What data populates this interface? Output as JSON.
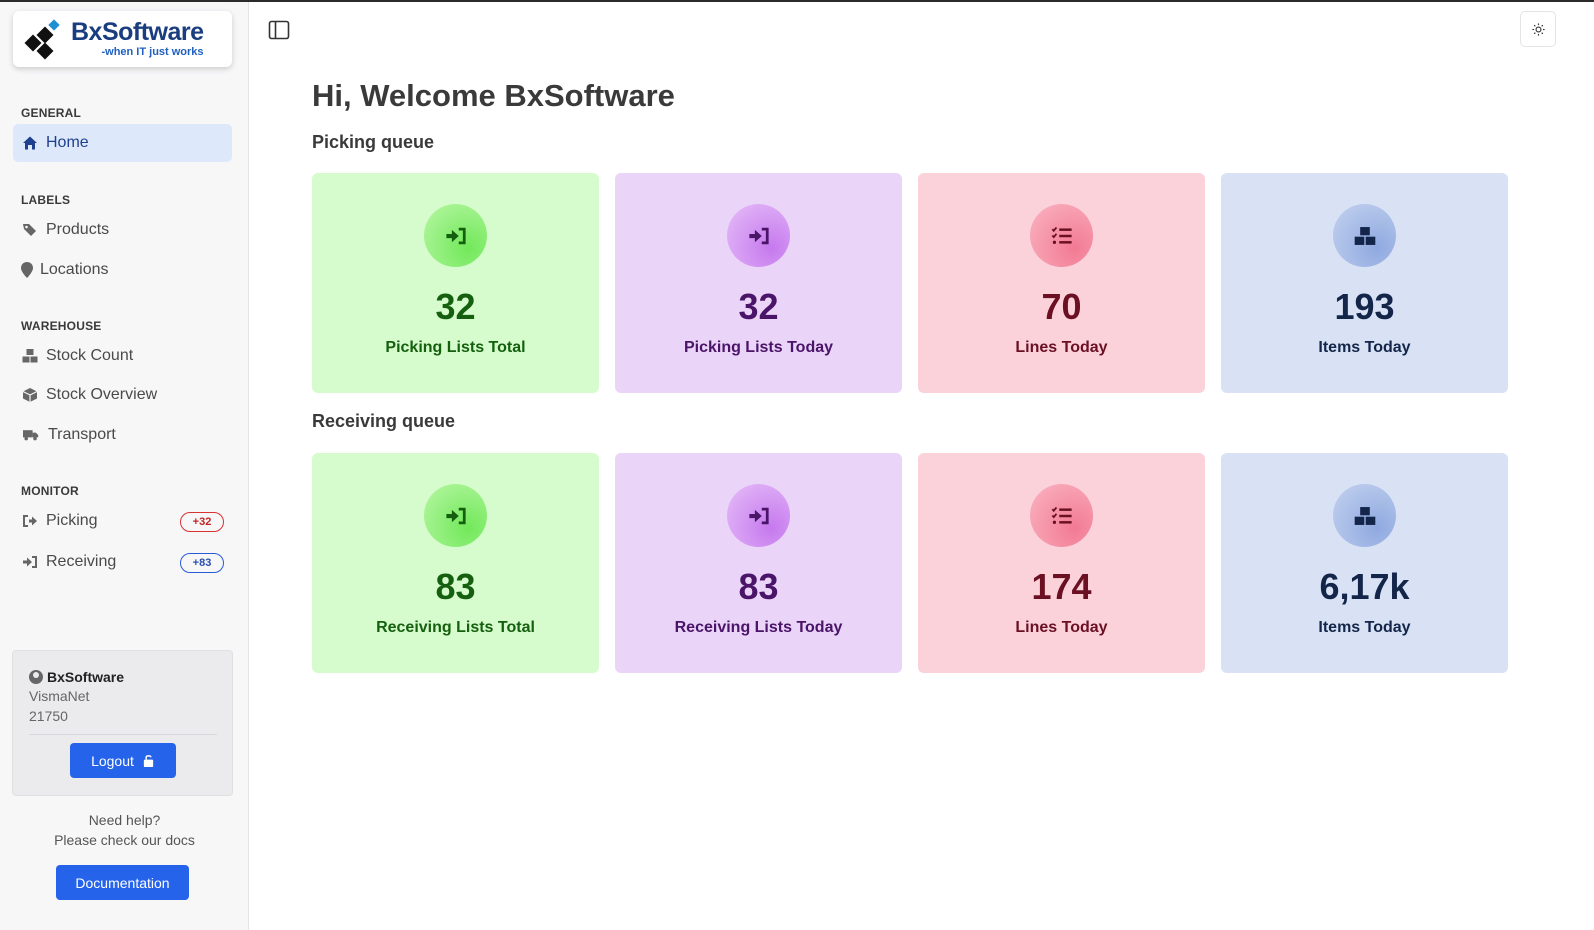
{
  "brand": {
    "name": "BxSoftware",
    "tagline": "-when IT just works"
  },
  "sidebar": {
    "sections": [
      {
        "label": "GENERAL"
      },
      {
        "label": "LABELS"
      },
      {
        "label": "WAREHOUSE"
      },
      {
        "label": "MONITOR"
      }
    ],
    "items": [
      {
        "label": "Home",
        "icon": "home-icon",
        "active": true
      },
      {
        "label": "Products",
        "icon": "tags-icon"
      },
      {
        "label": "Locations",
        "icon": "map-pin-icon"
      },
      {
        "label": "Stock Count",
        "icon": "boxes-icon"
      },
      {
        "label": "Stock Overview",
        "icon": "box-icon"
      },
      {
        "label": "Transport",
        "icon": "truck-icon"
      },
      {
        "label": "Picking",
        "icon": "sign-out-icon",
        "badge": "+32"
      },
      {
        "label": "Receiving",
        "icon": "sign-in-icon",
        "badge": "+83"
      }
    ]
  },
  "user": {
    "name": "BxSoftware",
    "system": "VismaNet",
    "company_id": "21750",
    "logout_label": "Logout"
  },
  "help": {
    "line1": "Need help?",
    "line2": "Please check our docs",
    "button_label": "Documentation"
  },
  "main": {
    "welcome": "Hi, Welcome BxSoftware",
    "picking": {
      "title": "Picking queue",
      "cards": [
        {
          "value": "32",
          "label": "Picking Lists Total",
          "icon": "sign-in-icon"
        },
        {
          "value": "32",
          "label": "Picking Lists Today",
          "icon": "sign-in-icon"
        },
        {
          "value": "70",
          "label": "Lines Today",
          "icon": "list-check-icon"
        },
        {
          "value": "193",
          "label": "Items Today",
          "icon": "boxes-icon"
        }
      ]
    },
    "receiving": {
      "title": "Receiving queue",
      "cards": [
        {
          "value": "83",
          "label": "Receiving Lists Total",
          "icon": "sign-in-icon"
        },
        {
          "value": "83",
          "label": "Receiving Lists Today",
          "icon": "sign-in-icon"
        },
        {
          "value": "174",
          "label": "Lines Today",
          "icon": "list-check-icon"
        },
        {
          "value": "6,17k",
          "label": "Items Today",
          "icon": "boxes-icon"
        }
      ]
    }
  },
  "colors": {
    "accent": "#2563eb",
    "nav_active_bg": "#dde9fb",
    "card_green": "#d6fbcd",
    "card_purple": "#ead4f8",
    "card_pink": "#fcd2da",
    "card_blue": "#d8e2f4"
  }
}
